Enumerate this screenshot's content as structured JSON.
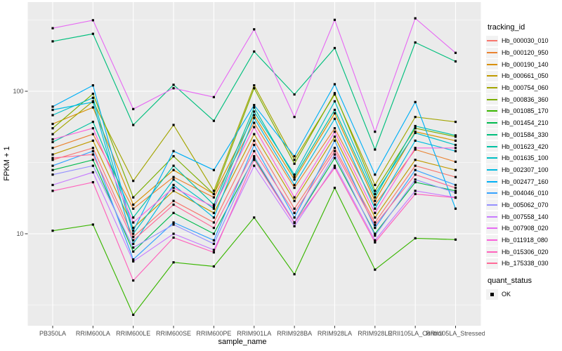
{
  "chart_data": {
    "type": "line",
    "title": "",
    "xlabel": "sample_name",
    "ylabel": "FPKM + 1",
    "y_scale": "log10",
    "y_ticks": [
      10,
      100
    ],
    "y_minor_ticks": [
      3.162,
      31.62,
      316.2
    ],
    "ylim": [
      2.3,
      400
    ],
    "grid": true,
    "panel_bg": "#EBEBEB",
    "grid_color": "#FFFFFF",
    "tick_text_color": "#4D4D4D",
    "tick_mark_color": "#333333",
    "point_marker": "black-square",
    "categories": [
      "PB350LA",
      "RRIM600LA",
      "RRIM600LE",
      "RRIM600SE",
      "RRIM600PE",
      "RRIM901LA",
      "RRIM928BA",
      "RRIM928LA",
      "RRIM928LE",
      "RRII105LA_Control",
      "RRII105LA_Stressed"
    ],
    "legend": {
      "title": "tracking_id",
      "position": "right"
    },
    "legend2": {
      "title": "quant_status",
      "items": [
        {
          "label": "OK",
          "marker": "black-square"
        }
      ]
    },
    "series": [
      {
        "name": "Hb_000030_010",
        "color": "#F8766D",
        "values": [
          33,
          40,
          9.5,
          17,
          12,
          45,
          15,
          40,
          12,
          30,
          25
        ]
      },
      {
        "name": "Hb_000120_950",
        "color": "#EA8331",
        "values": [
          40,
          50,
          15,
          25,
          18,
          60,
          21,
          55,
          16,
          39,
          32
        ]
      },
      {
        "name": "Hb_000190_140",
        "color": "#D89000",
        "values": [
          59,
          77,
          16,
          28,
          19,
          68,
          24,
          70,
          17,
          52,
          45
        ]
      },
      {
        "name": "Hb_000661_050",
        "color": "#C09B00",
        "values": [
          36,
          45,
          11,
          20,
          14,
          50,
          17,
          48,
          13,
          33,
          28
        ]
      },
      {
        "name": "Hb_000754_060",
        "color": "#A3A500",
        "values": [
          50,
          85,
          23.5,
          58,
          20,
          110,
          33,
          95,
          22,
          66,
          61
        ]
      },
      {
        "name": "Hb_000836_360",
        "color": "#7CAE00",
        "values": [
          55,
          96,
          18,
          35,
          19,
          105,
          31,
          97,
          20,
          55,
          48
        ]
      },
      {
        "name": "Hb_001085_170",
        "color": "#39B600",
        "values": [
          10.5,
          11.6,
          2.7,
          6.3,
          5.9,
          13,
          5.2,
          21,
          5.6,
          9.3,
          9.1
        ]
      },
      {
        "name": "Hb_001454_210",
        "color": "#00BB4E",
        "values": [
          28,
          33,
          7.5,
          14,
          10,
          34,
          12,
          34,
          10,
          23,
          20
        ]
      },
      {
        "name": "Hb_001584_330",
        "color": "#00BF7D",
        "values": [
          224,
          253,
          58,
          111,
          62,
          190,
          95,
          201,
          39,
          220,
          162
        ]
      },
      {
        "name": "Hb_001623_420",
        "color": "#00C1A3",
        "values": [
          44,
          61,
          13,
          30,
          16,
          77,
          25,
          74,
          18,
          57,
          49
        ]
      },
      {
        "name": "Hb_001635_100",
        "color": "#00BFC4",
        "values": [
          68,
          90,
          10,
          24,
          15,
          72,
          26,
          85,
          19,
          51,
          42
        ]
      },
      {
        "name": "Hb_002307_100",
        "color": "#00BAE0",
        "values": [
          74,
          84,
          8.5,
          22,
          13,
          65,
          22,
          64,
          15,
          45,
          38
        ]
      },
      {
        "name": "Hb_002477_160",
        "color": "#00B0F6",
        "values": [
          78,
          110,
          10.5,
          38,
          28,
          80,
          35,
          112,
          26,
          84,
          15
        ]
      },
      {
        "name": "Hb_004046_010",
        "color": "#35A2FF",
        "values": [
          30,
          38,
          6.6,
          12,
          9,
          42,
          13,
          45,
          11,
          28,
          22
        ]
      },
      {
        "name": "Hb_005062_070",
        "color": "#9590FF",
        "values": [
          26,
          30,
          8,
          11.6,
          8.5,
          35,
          12,
          36,
          9.7,
          24,
          19.4
        ]
      },
      {
        "name": "Hb_007558_140",
        "color": "#C77CFF",
        "values": [
          22,
          27,
          6.4,
          10,
          7.7,
          30,
          11.3,
          30,
          9,
          20,
          18
        ]
      },
      {
        "name": "Hb_007908_020",
        "color": "#E76BF3",
        "values": [
          277,
          315,
          75,
          105,
          91,
          272,
          66,
          317,
          52,
          325,
          186
        ]
      },
      {
        "name": "Hb_011918_080",
        "color": "#FA62DB",
        "values": [
          46,
          55,
          12,
          21,
          15.5,
          56,
          18,
          52,
          14,
          40,
          40
        ]
      },
      {
        "name": "Hb_015306_020",
        "color": "#FF62BC",
        "values": [
          20,
          23,
          4.7,
          9.4,
          7.4,
          33,
          11.9,
          29,
          8.7,
          19,
          17.9
        ]
      },
      {
        "name": "Hb_175338_030",
        "color": "#FF6A98",
        "values": [
          34,
          36,
          9,
          16,
          11,
          38,
          14,
          38,
          11.5,
          26,
          21
        ]
      }
    ]
  }
}
